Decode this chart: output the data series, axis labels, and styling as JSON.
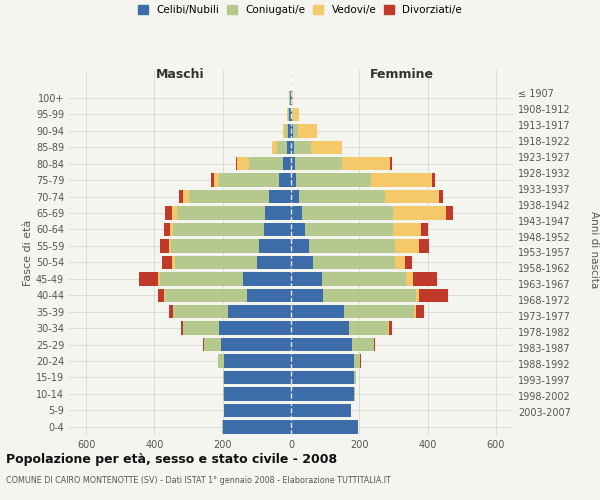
{
  "age_groups_bottom_to_top": [
    "0-4",
    "5-9",
    "10-14",
    "15-19",
    "20-24",
    "25-29",
    "30-34",
    "35-39",
    "40-44",
    "45-49",
    "50-54",
    "55-59",
    "60-64",
    "65-69",
    "70-74",
    "75-79",
    "80-84",
    "85-89",
    "90-94",
    "95-99",
    "100+"
  ],
  "birth_years_bottom_to_top": [
    "2003-2007",
    "1998-2002",
    "1993-1997",
    "1988-1992",
    "1983-1987",
    "1978-1982",
    "1973-1977",
    "1968-1972",
    "1963-1967",
    "1958-1962",
    "1953-1957",
    "1948-1952",
    "1943-1947",
    "1938-1942",
    "1933-1937",
    "1928-1932",
    "1923-1927",
    "1918-1922",
    "1913-1917",
    "1908-1912",
    "≤ 1907"
  ],
  "maschi": {
    "celibi": [
      200,
      195,
      195,
      195,
      195,
      205,
      210,
      185,
      130,
      140,
      100,
      95,
      80,
      75,
      65,
      35,
      22,
      12,
      8,
      5,
      3
    ],
    "coniugati": [
      2,
      2,
      3,
      5,
      18,
      50,
      105,
      160,
      240,
      245,
      240,
      255,
      265,
      260,
      235,
      175,
      100,
      30,
      10,
      5,
      2
    ],
    "vedovi": [
      0,
      0,
      0,
      0,
      0,
      0,
      1,
      1,
      2,
      5,
      7,
      8,
      8,
      12,
      15,
      15,
      35,
      15,
      5,
      2,
      1
    ],
    "divorziati": [
      0,
      0,
      0,
      0,
      1,
      3,
      5,
      12,
      18,
      55,
      30,
      25,
      20,
      22,
      12,
      10,
      5,
      0,
      0,
      0,
      0
    ]
  },
  "femmine": {
    "nubili": [
      195,
      175,
      185,
      185,
      185,
      180,
      170,
      155,
      95,
      90,
      65,
      52,
      42,
      32,
      22,
      15,
      12,
      8,
      5,
      3,
      2
    ],
    "coniugate": [
      2,
      2,
      3,
      5,
      18,
      62,
      115,
      205,
      270,
      248,
      240,
      252,
      258,
      268,
      252,
      218,
      138,
      52,
      15,
      4,
      1
    ],
    "vedove": [
      0,
      0,
      0,
      0,
      0,
      1,
      2,
      5,
      10,
      20,
      30,
      70,
      80,
      155,
      160,
      180,
      140,
      90,
      55,
      15,
      3
    ],
    "divorziate": [
      0,
      0,
      0,
      0,
      2,
      3,
      8,
      25,
      85,
      70,
      20,
      30,
      20,
      18,
      12,
      10,
      5,
      0,
      0,
      0,
      0
    ]
  },
  "color_celibi": "#3d6da8",
  "color_coniugati": "#b5c98e",
  "color_vedovi": "#f5c96a",
  "color_divorziati": "#c0392b",
  "title1": "Popolazione per età, sesso e stato civile - 2008",
  "title2": "COMUNE DI CAIRO MONTENOTTE (SV) - Dati ISTAT 1° gennaio 2008 - Elaborazione TUTTITALIA.IT",
  "xlabel_left": "Maschi",
  "xlabel_right": "Femmine",
  "ylabel_left": "Fasce di età",
  "ylabel_right": "Anni di nascita",
  "xlim": 650,
  "bg_color": "#f5f5f0",
  "grid_color": "#d0d0d0"
}
